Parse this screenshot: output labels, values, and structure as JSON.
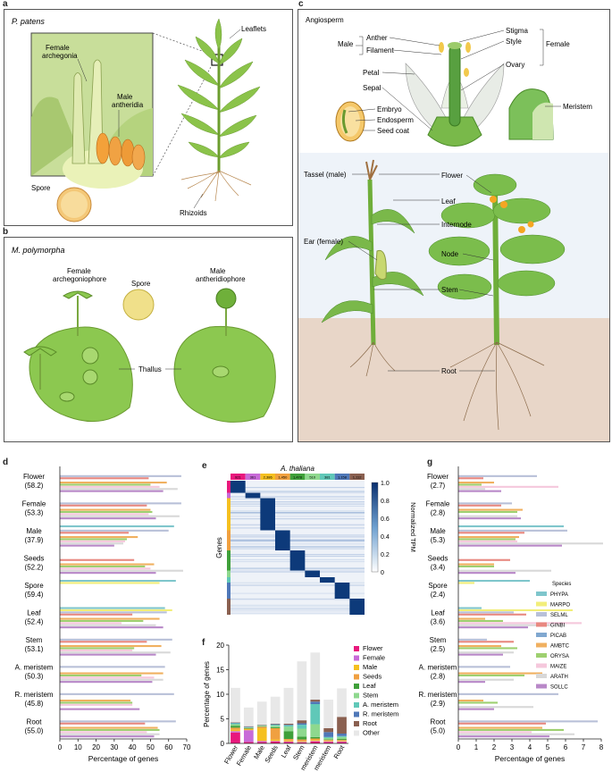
{
  "panel_labels": {
    "a": "a",
    "b": "b",
    "c": "c",
    "d": "d",
    "e": "e",
    "f": "f",
    "g": "g"
  },
  "panel_a": {
    "species": "P. patens",
    "labels": {
      "female": "Female\narchegonia",
      "male": "Male\nantheridia",
      "spore": "Spore",
      "leaflets": "Leaflets",
      "rhizoids": "Rhizoids"
    }
  },
  "panel_b": {
    "species": "M. polymorpha",
    "labels": {
      "female": "Female\narchegoniophore",
      "male": "Male\nantheridiophore",
      "spore": "Spore",
      "thallus": "Thallus"
    }
  },
  "panel_c": {
    "title": "Angiosperm",
    "flower_labels": {
      "anther": "Anther",
      "filament": "Filament",
      "male": "Male",
      "stigma": "Stigma",
      "style": "Style",
      "ovary": "Ovary",
      "female": "Female",
      "petal": "Petal",
      "sepal": "Sepal"
    },
    "seed_labels": {
      "embryo": "Embryo",
      "endosperm": "Endosperm",
      "seedcoat": "Seed coat"
    },
    "meristem": "Meristem",
    "plant_labels": {
      "tassel": "Tassel (male)",
      "ear": "Ear (female)",
      "flower": "Flower",
      "leaf": "Leaf",
      "internode": "Internode",
      "node": "Node",
      "stem": "Stem",
      "root": "Root"
    }
  },
  "chart_data": [
    {
      "id": "d",
      "type": "bar",
      "orientation": "horizontal",
      "xlabel": "Percentage of genes",
      "xlim": [
        0,
        70
      ],
      "xticks": [
        0,
        10,
        20,
        30,
        40,
        50,
        60,
        70
      ],
      "categories": [
        "Flower",
        "Female",
        "Male",
        "Seeds",
        "Spore",
        "Leaf",
        "Stem",
        "A. meristem",
        "R. meristem",
        "Root"
      ],
      "category_values": [
        "(58.2)",
        "(53.3)",
        "(37.9)",
        "(52.2)",
        "(59.4)",
        "(52.4)",
        "(53.1)",
        "(50.3)",
        "(45.8)",
        "(55.0)"
      ],
      "series_order": [
        "PHYPA",
        "MARPO",
        "SELML",
        "GINBI",
        "PICAB",
        "AMBTC",
        "ORYSA",
        "MAIZE",
        "ARATH",
        "SOLLC"
      ],
      "values": [
        [
          0,
          0,
          67,
          49,
          0,
          59,
          50,
          55,
          65,
          57
        ],
        [
          0,
          0,
          67,
          48,
          0,
          50,
          51,
          49,
          66,
          53
        ],
        [
          63,
          0,
          60,
          38,
          0,
          43,
          37,
          36,
          35,
          30
        ],
        [
          0,
          0,
          0,
          41,
          0,
          52,
          47,
          50,
          68,
          53
        ],
        [
          64,
          55,
          0,
          0,
          0,
          0,
          0,
          0,
          0,
          0
        ],
        [
          58,
          62,
          59,
          40,
          0,
          55,
          46,
          34,
          53,
          57
        ],
        [
          0,
          0,
          62,
          48,
          0,
          56,
          41,
          40,
          61,
          53
        ],
        [
          0,
          0,
          58,
          0,
          0,
          57,
          45,
          52,
          57,
          51
        ],
        [
          0,
          0,
          63,
          0,
          0,
          39,
          40,
          40,
          0,
          44
        ],
        [
          0,
          0,
          64,
          47,
          0,
          54,
          55,
          48,
          55,
          52
        ]
      ]
    },
    {
      "id": "e",
      "type": "heatmap",
      "title": "A. thaliana",
      "ylabel": "Genes",
      "colorbar_label": "Normalized TPM",
      "colorbar_ticks": [
        "1.0",
        "0.8",
        "0.6",
        "0.4",
        "0.2",
        "0"
      ],
      "colorbar_values": [
        1.0,
        0.8,
        0.6,
        0.4,
        0.2,
        0
      ],
      "column_counts": [
        "921",
        "361",
        "2,386",
        "1,450",
        "1,478",
        "510",
        "381",
        "1,158",
        "1,112"
      ],
      "block_fractions": [
        0.09,
        0.04,
        0.24,
        0.15,
        0.15,
        0.05,
        0.04,
        0.12,
        0.12
      ]
    },
    {
      "id": "f",
      "type": "bar",
      "stacked": true,
      "ylabel": "Percentage of genes",
      "ylim": [
        0,
        20
      ],
      "yticks": [
        0,
        5,
        10,
        15,
        20
      ],
      "categories": [
        "Flower",
        "Female",
        "Male",
        "Seeds",
        "Leaf",
        "Stem",
        "A. meristem",
        "R. meristem",
        "Root"
      ],
      "legend": [
        "Flower",
        "Female",
        "Male",
        "Seeds",
        "Leaf",
        "Stem",
        "A. meristem",
        "R. meristem",
        "Root",
        "Other"
      ],
      "series": [
        {
          "name": "Flower",
          "values": [
            2.2,
            0.3,
            0.3,
            0.4,
            0.3,
            0.2,
            0.4,
            0.3,
            0.3
          ]
        },
        {
          "name": "Female",
          "values": [
            0.3,
            2.4,
            0.2,
            0.1,
            0.1,
            0.1,
            0.1,
            0.1,
            0.1
          ]
        },
        {
          "name": "Male",
          "values": [
            0.3,
            0.2,
            2.6,
            0.3,
            0.2,
            0.1,
            0.2,
            0.1,
            0.1
          ]
        },
        {
          "name": "Seeds",
          "values": [
            0.4,
            0.1,
            0.3,
            2.3,
            0.3,
            0.4,
            0.3,
            0.2,
            0.2
          ]
        },
        {
          "name": "Leaf",
          "values": [
            0.4,
            0.1,
            0.1,
            0.2,
            1.6,
            0.6,
            0.3,
            0.1,
            0.2
          ]
        },
        {
          "name": "Stem",
          "values": [
            0.3,
            0.1,
            0.1,
            0.3,
            0.9,
            1.6,
            2.6,
            0.3,
            0.4
          ]
        },
        {
          "name": "A. meristem",
          "values": [
            0.2,
            0.1,
            0.1,
            0.2,
            0.3,
            0.8,
            4.1,
            0.2,
            0.2
          ]
        },
        {
          "name": "R. meristem",
          "values": [
            0.1,
            0.1,
            0.0,
            0.1,
            0.1,
            0.3,
            0.5,
            1.0,
            0.5
          ]
        },
        {
          "name": "Root",
          "values": [
            0.1,
            0.1,
            0.1,
            0.1,
            0.2,
            0.6,
            0.4,
            0.8,
            3.4
          ]
        },
        {
          "name": "Other",
          "values": [
            7.0,
            3.8,
            4.7,
            5.5,
            7.3,
            12.0,
            9.6,
            5.8,
            5.8
          ]
        }
      ],
      "colors": [
        "#e8187c",
        "#c86ad8",
        "#f5c020",
        "#f0a040",
        "#3fa03a",
        "#8ed88e",
        "#60c8b8",
        "#4f78b8",
        "#8a6050",
        "#e8e8e8"
      ]
    },
    {
      "id": "g",
      "type": "bar",
      "orientation": "horizontal",
      "xlabel": "Percentage of genes",
      "xlim": [
        0,
        8
      ],
      "xticks": [
        0,
        1,
        2,
        3,
        4,
        5,
        6,
        7,
        8
      ],
      "categories": [
        "Flower",
        "Female",
        "Male",
        "Seeds",
        "Spore",
        "Leaf",
        "Stem",
        "A. meristem",
        "R. meristem",
        "Root"
      ],
      "category_values": [
        "(2.7)",
        "(2.8)",
        "(5.3)",
        "(3.4)",
        "(2.4)",
        "(3.6)",
        "(2.5)",
        "(2.8)",
        "(2.9)",
        "(5.0)"
      ],
      "legend_title": "Species",
      "series_order": [
        "PHYPA",
        "MARPO",
        "SELML",
        "GINBI",
        "PICAB",
        "AMBTC",
        "ORYSA",
        "MAIZE",
        "ARATH",
        "SOLLC"
      ],
      "values": [
        [
          0,
          0,
          4.4,
          1.4,
          0,
          2.0,
          1.3,
          5.6,
          1.5,
          2.4
        ],
        [
          0,
          0,
          3.0,
          2.4,
          0,
          3.6,
          3.3,
          0,
          3.3,
          3.5
        ],
        [
          5.9,
          0,
          6.1,
          3.7,
          0,
          3.4,
          3.2,
          3.3,
          8.1,
          5.8
        ],
        [
          0,
          0,
          0,
          2.9,
          0,
          2.0,
          2.0,
          0,
          5.2,
          3.2
        ],
        [
          4.0,
          0.9,
          0,
          0,
          0,
          0,
          0,
          0,
          0,
          0
        ],
        [
          1.3,
          6.4,
          3.1,
          3.8,
          0,
          1.5,
          2.5,
          6.9,
          5.2,
          3.9
        ],
        [
          0,
          0,
          1.6,
          3.1,
          0,
          2.4,
          3.3,
          0,
          3.1,
          2.5
        ],
        [
          0,
          0,
          2.9,
          0,
          0,
          4.7,
          3.7,
          0,
          3.1,
          1.5
        ],
        [
          0,
          0,
          5.6,
          0,
          0,
          1.4,
          2.2,
          0,
          4.2,
          2.0
        ],
        [
          0,
          0,
          7.8,
          4.9,
          0,
          4.7,
          5.9,
          4.1,
          6.5,
          5.1
        ]
      ],
      "legend": [
        "PHYPA",
        "MARPO",
        "SELML",
        "GINBI",
        "PICAB",
        "AMBTC",
        "ORYSA",
        "MAIZE",
        "ARATH",
        "SOLLC"
      ],
      "colors": [
        "#7fc6cc",
        "#f2ee7a",
        "#b8c0d8",
        "#e88880",
        "#80a8d0",
        "#f0b060",
        "#9ed070",
        "#f5c8dc",
        "#d8d8d8",
        "#b888c8"
      ]
    }
  ]
}
